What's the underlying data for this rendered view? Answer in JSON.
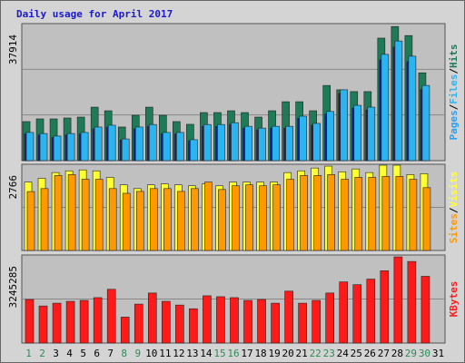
{
  "title": "Daily usage for April 2017",
  "legend_separator": "/",
  "chart_data": [
    {
      "type": "bar",
      "ylim": [
        0,
        37914
      ],
      "yticks": [
        37914
      ],
      "grid_divisions": 3,
      "series": [
        {
          "name": "Pages",
          "color": "#1e1e8c",
          "values": [
            7400,
            7100,
            6400,
            7100,
            7400,
            8800,
            9300,
            5700,
            8800,
            9500,
            7400,
            7400,
            5500,
            9500,
            9500,
            10000,
            9000,
            8500,
            9000,
            9000,
            11700,
            9800,
            12900,
            18600,
            14500,
            14000,
            27900,
            31400,
            27400,
            19700,
            null
          ]
        },
        {
          "name": "Files",
          "color": "#2ab4f0",
          "values": [
            7800,
            7500,
            6800,
            7500,
            7800,
            9300,
            9800,
            6000,
            9300,
            10000,
            7800,
            7800,
            5800,
            10000,
            10000,
            10500,
            9500,
            9000,
            9500,
            9500,
            12300,
            10300,
            13600,
            19600,
            15300,
            14800,
            29400,
            33100,
            28900,
            20800,
            null
          ]
        },
        {
          "name": "Hits",
          "color": "#1f7a57",
          "values": [
            10800,
            11550,
            11550,
            11800,
            12050,
            14800,
            13800,
            9300,
            12550,
            14800,
            12550,
            10800,
            10050,
            13300,
            13300,
            13800,
            13300,
            12050,
            13800,
            16300,
            16300,
            13800,
            20800,
            19600,
            19100,
            19100,
            33900,
            37100,
            34600,
            24300,
            null
          ]
        }
      ]
    },
    {
      "type": "bar",
      "ylim": [
        0,
        2766
      ],
      "yticks": [
        2766
      ],
      "grid_divisions": 2,
      "series": [
        {
          "name": "Sites",
          "color": "#ff9900",
          "values": [
            1890,
            1985,
            2405,
            2435,
            2285,
            2285,
            1985,
            1835,
            1895,
            1985,
            1985,
            1895,
            1985,
            2195,
            1955,
            2075,
            2105,
            2075,
            2105,
            2285,
            2405,
            2405,
            2435,
            2285,
            2345,
            2345,
            2375,
            2375,
            2285,
            2015,
            null
          ]
        },
        {
          "name": "Visits",
          "color": "#ffff33",
          "values": [
            2195,
            2315,
            2500,
            2555,
            2585,
            2555,
            2345,
            2105,
            1985,
            2105,
            2135,
            2105,
            2075,
            2135,
            2075,
            2195,
            2195,
            2195,
            2195,
            2500,
            2555,
            2645,
            2706,
            2525,
            2615,
            2500,
            2736,
            2736,
            2435,
            2465,
            null
          ]
        }
      ]
    },
    {
      "type": "bar",
      "ylim": [
        0,
        3245285
      ],
      "yticks": [
        3245285
      ],
      "grid_divisions": 2,
      "categories": [
        "1",
        "2",
        "3",
        "4",
        "5",
        "6",
        "7",
        "8",
        "9",
        "10",
        "11",
        "12",
        "13",
        "14",
        "15",
        "16",
        "17",
        "18",
        "19",
        "20",
        "21",
        "22",
        "23",
        "24",
        "25",
        "26",
        "27",
        "28",
        "29",
        "30",
        "31"
      ],
      "weekend": [
        0,
        1,
        7,
        8,
        14,
        15,
        21,
        22,
        28,
        29
      ],
      "series": [
        {
          "name": "KBytes",
          "color": "#ff1a1a",
          "values": [
            1605600,
            1366400,
            1468900,
            1537200,
            1571400,
            1673900,
            1981300,
            956500,
            1434800,
            1844700,
            1537200,
            1400600,
            1264000,
            1742200,
            1708000,
            1673900,
            1571400,
            1605600,
            1468900,
            1913000,
            1468900,
            1571400,
            1844700,
            2254600,
            2152100,
            2357100,
            2664600,
            3177000,
            3006200,
            2459600,
            null
          ]
        }
      ]
    }
  ]
}
